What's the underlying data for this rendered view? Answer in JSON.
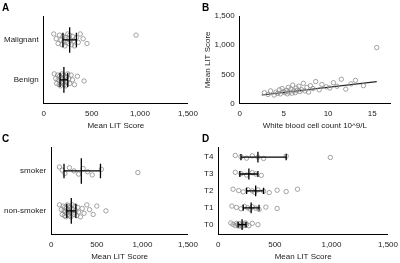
{
  "chart_data": [
    {
      "type": "strip",
      "title": "A",
      "orientation": "horizontal",
      "categories": [
        "Malignant",
        "Benign"
      ],
      "values": [
        [
          105,
          130,
          150,
          165,
          180,
          190,
          200,
          210,
          220,
          230,
          240,
          250,
          255,
          260,
          270,
          280,
          290,
          300,
          310,
          320,
          340,
          360,
          380,
          410,
          450,
          960
        ],
        [
          110,
          125,
          135,
          145,
          150,
          160,
          165,
          170,
          175,
          180,
          185,
          190,
          195,
          200,
          205,
          210,
          215,
          220,
          225,
          230,
          235,
          240,
          250,
          260,
          270,
          285,
          300,
          320,
          350,
          420
        ]
      ],
      "error_bars": [
        {
          "center": 270,
          "low": 200,
          "high": 340
        },
        {
          "center": 210,
          "low": 170,
          "high": 250
        }
      ],
      "x_label": "Mean LIT Score",
      "xlim": [
        0,
        1500
      ],
      "xticks": [
        0,
        500,
        1000,
        1500
      ],
      "color": "#8c8c8c",
      "marker": "circle",
      "grid": false
    },
    {
      "type": "scatter",
      "title": "B",
      "x": [
        2.8,
        3.2,
        3.5,
        3.9,
        4.1,
        4.3,
        4.5,
        4.6,
        4.8,
        5.0,
        5.1,
        5.3,
        5.4,
        5.5,
        5.6,
        5.8,
        5.9,
        6.0,
        6.1,
        6.3,
        6.4,
        6.5,
        6.7,
        6.8,
        7.0,
        7.2,
        7.4,
        7.6,
        7.8,
        8.0,
        8.3,
        8.6,
        9.0,
        9.3,
        9.8,
        10.2,
        10.6,
        11.0,
        11.5,
        12.0,
        12.6,
        13.1,
        14.0,
        15.5
      ],
      "values": [
        190,
        160,
        220,
        150,
        200,
        180,
        240,
        170,
        260,
        210,
        190,
        230,
        170,
        280,
        200,
        250,
        180,
        320,
        220,
        190,
        270,
        230,
        300,
        210,
        240,
        350,
        220,
        280,
        200,
        310,
        260,
        380,
        240,
        330,
        290,
        270,
        360,
        300,
        420,
        250,
        340,
        400,
        310,
        960
      ],
      "fit": {
        "x": [
          2.5,
          15.5
        ],
        "y": [
          150,
          380
        ]
      },
      "x_label": "White blood cell count 10^9/L",
      "y_label": "Mean LIT Score",
      "xlim": [
        0,
        17
      ],
      "xticks": [
        0,
        5,
        10,
        15
      ],
      "ylim": [
        0,
        1500
      ],
      "yticks": [
        0,
        500,
        1000,
        1500
      ],
      "color": "#8c8c8c",
      "marker": "circle",
      "grid": false
    },
    {
      "type": "strip",
      "title": "C",
      "orientation": "horizontal",
      "categories": [
        "smoker",
        "non-smoker"
      ],
      "values": [
        [
          90,
          120,
          150,
          200,
          250,
          300,
          350,
          400,
          450,
          550,
          950
        ],
        [
          90,
          110,
          120,
          130,
          140,
          145,
          150,
          155,
          160,
          165,
          170,
          175,
          180,
          185,
          190,
          195,
          200,
          205,
          210,
          215,
          220,
          225,
          230,
          240,
          250,
          260,
          270,
          280,
          290,
          300,
          320,
          340,
          360,
          390,
          420,
          460,
          500,
          600
        ]
      ],
      "error_bars": [
        {
          "center": 330,
          "low": 140,
          "high": 540
        },
        {
          "center": 220,
          "low": 170,
          "high": 270
        }
      ],
      "x_label": "Mean LIT Score",
      "xlim": [
        0,
        1500
      ],
      "xticks": [
        0,
        500,
        1000,
        1500
      ],
      "color": "#8c8c8c",
      "marker": "circle",
      "grid": false
    },
    {
      "type": "strip",
      "title": "D",
      "orientation": "horizontal",
      "categories": [
        "T4",
        "T3",
        "T2",
        "T1",
        "T0"
      ],
      "values": [
        [
          150,
          200,
          250,
          300,
          350,
          400,
          600,
          990
        ],
        [
          150,
          200,
          250,
          300,
          330,
          380
        ],
        [
          130,
          180,
          220,
          260,
          300,
          320,
          350,
          400,
          450,
          520,
          600,
          700
        ],
        [
          120,
          160,
          200,
          230,
          260,
          280,
          300,
          330,
          360,
          420,
          520
        ],
        [
          110,
          130,
          150,
          160,
          170,
          180,
          190,
          200,
          210,
          220,
          230,
          240,
          250,
          270,
          300,
          350
        ]
      ],
      "error_bars": [
        {
          "center": 350,
          "low": 200,
          "high": 600
        },
        {
          "center": 270,
          "low": 190,
          "high": 350
        },
        {
          "center": 330,
          "low": 250,
          "high": 400
        },
        {
          "center": 290,
          "low": 220,
          "high": 360
        },
        {
          "center": 210,
          "low": 175,
          "high": 245
        }
      ],
      "x_label": "Mean LIT Score",
      "xlim": [
        0,
        1500
      ],
      "xticks": [
        0,
        500,
        1000,
        1500
      ],
      "color": "#8c8c8c",
      "marker": "circle",
      "grid": false
    }
  ]
}
